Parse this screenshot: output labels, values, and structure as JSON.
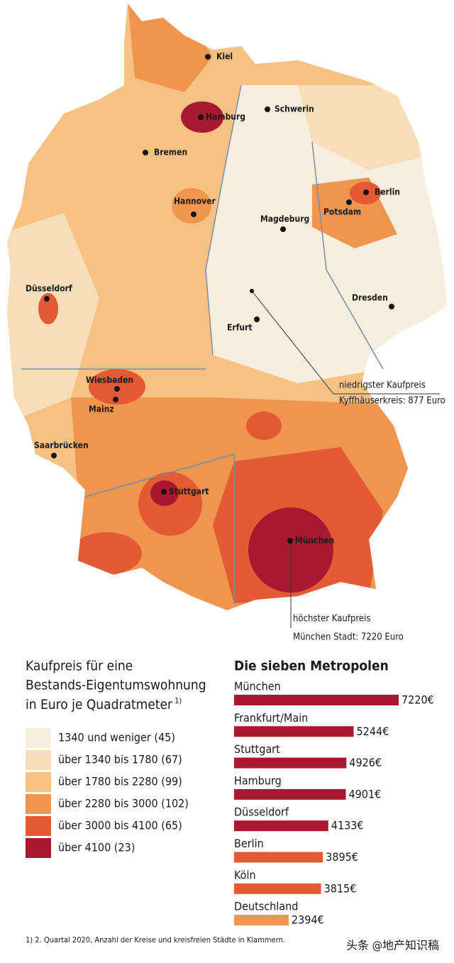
{
  "map": {
    "cities": [
      "Kiel",
      "Hamburg",
      "Schwerin",
      "Bremen",
      "Berlin",
      "Potsdam",
      "Hannover",
      "Magdeburg",
      "Düsseldorf",
      "Dresden",
      "Erfurt",
      "Wiesbaden",
      "Mainz",
      "Saarbrücken",
      "Stuttgart",
      "München"
    ],
    "annotations": [
      {
        "title": "niedrigster Kaufpreis",
        "text": "Kyffhäuserkreis: 877 Euro"
      },
      {
        "title": "höchster Kaufpreis",
        "text": "München Stadt: 7220 Euro"
      }
    ]
  },
  "legend": {
    "title": [
      "Kaufpreis für eine",
      "Bestands-Eigentumswohnung",
      "in Euro je Quadratmeter"
    ],
    "note_mark": "1)",
    "items": [
      {
        "label": "1340 und weniger (45)",
        "color": "#f7eedf"
      },
      {
        "label": "über 1340 bis 1780 (67)",
        "color": "#f6deb8"
      },
      {
        "label": "über 1780 bis 2280 (99)",
        "color": "#f5c283"
      },
      {
        "label": "über 2280 bis 3000 (102)",
        "color": "#ee9650"
      },
      {
        "label": "über 3000 bis 4100 (65)",
        "color": "#e35a35"
      },
      {
        "label": "über 4100 (23)",
        "color": "#a8182e"
      }
    ]
  },
  "chart_data": {
    "type": "bar",
    "title": "Die sieben Metropolen",
    "categories": [
      "München",
      "Frankfurt/Main",
      "Stuttgart",
      "Hamburg",
      "Düsseldorf",
      "Berlin",
      "Köln",
      "Deutschland"
    ],
    "values": [
      7220,
      5244,
      4926,
      4901,
      4133,
      3895,
      3815,
      2394
    ],
    "value_labels": [
      "7220€",
      "5244€",
      "4926€",
      "4901€",
      "4133€",
      "3895€",
      "3815€",
      "2394€"
    ],
    "colors": [
      "#a8182e",
      "#a8182e",
      "#a8182e",
      "#a8182e",
      "#a8182e",
      "#e35a35",
      "#e35a35",
      "#ee9650"
    ]
  },
  "footnote": "1) 2. Quartal 2020, Anzahl der Kreise und kreisfreien Städte in Klammern.",
  "watermark": "头条 @地产知识稿"
}
